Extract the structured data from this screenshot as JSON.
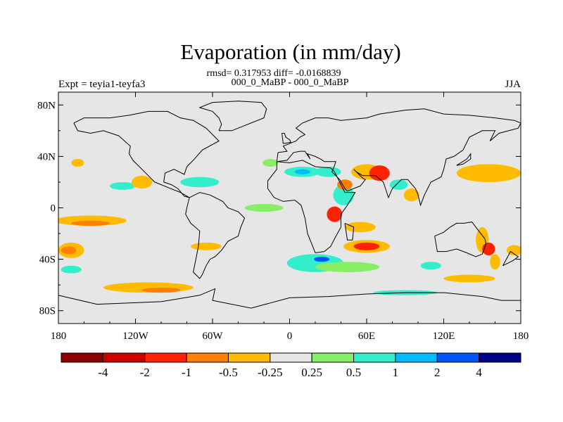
{
  "chart_data": {
    "type": "filled-contour-map",
    "title": "Evaporation (in mm/day)",
    "subtitle_stats": "rmsd= 0.317953 diff= -0.0168839",
    "subtitle_period": "000_0_MaBP - 000_0_MaBP",
    "left_label": "Expt = teyia1-teyfa3",
    "right_label": "JJA",
    "x_ticks": [
      "180",
      "120W",
      "60W",
      "0",
      "60E",
      "120E",
      "180"
    ],
    "x_values": [
      -180,
      -120,
      -60,
      0,
      60,
      120,
      180
    ],
    "y_ticks": [
      "80N",
      "40N",
      "0",
      "40S",
      "80S"
    ],
    "y_values": [
      80,
      40,
      0,
      -40,
      -80
    ],
    "xlim": [
      -180,
      180
    ],
    "ylim": [
      -90,
      90
    ],
    "colorbar_labels": [
      "-4",
      "-2",
      "-1",
      "-0.5",
      "-0.25",
      "0.25",
      "0.5",
      "1",
      "2",
      "4"
    ],
    "colorbar_levels": [
      -4,
      -2,
      -1,
      -0.5,
      -0.25,
      0.25,
      0.5,
      1,
      2,
      4
    ],
    "colorbar_colors": [
      "#8b0000",
      "#cc0000",
      "#ff2200",
      "#ff7f00",
      "#ffbb00",
      "#e6e6e6",
      "#88ee66",
      "#33eecc",
      "#00bbff",
      "#0055ff",
      "#000088"
    ],
    "neutral_color": "#e6e6e6",
    "anomaly_patches": [
      {
        "lon": 20,
        "lat": -43,
        "rlon": 22,
        "rlat": 7,
        "value": 0.6
      },
      {
        "lon": 25,
        "lat": -40,
        "rlon": 6,
        "rlat": 2,
        "value": 2.5
      },
      {
        "lon": 45,
        "lat": -46,
        "rlon": 25,
        "rlat": 4,
        "value": 0.4
      },
      {
        "lon": 110,
        "lat": -45,
        "rlon": 8,
        "rlat": 3,
        "value": 0.6
      },
      {
        "lon": 60,
        "lat": -30,
        "rlon": 18,
        "rlat": 5,
        "value": -0.35
      },
      {
        "lon": 60,
        "lat": -30,
        "rlon": 10,
        "rlat": 3,
        "value": -1.5
      },
      {
        "lon": 55,
        "lat": -15,
        "rlon": 12,
        "rlat": 4,
        "value": -0.4
      },
      {
        "lon": 35,
        "lat": -5,
        "rlon": 6,
        "rlat": 6,
        "value": -1.5
      },
      {
        "lon": 42,
        "lat": 10,
        "rlon": 8,
        "rlat": 8,
        "value": 0.5
      },
      {
        "lon": 60,
        "lat": 28,
        "rlon": 12,
        "rlat": 6,
        "value": -0.35
      },
      {
        "lon": 70,
        "lat": 27,
        "rlon": 8,
        "rlat": 6,
        "value": -1.5
      },
      {
        "lon": 43,
        "lat": 18,
        "rlon": 6,
        "rlat": 4,
        "value": -0.6
      },
      {
        "lon": 85,
        "lat": 18,
        "rlon": 7,
        "rlat": 4,
        "value": 0.6
      },
      {
        "lon": 95,
        "lat": 10,
        "rlon": 6,
        "rlat": 5,
        "value": -0.35
      },
      {
        "lon": 10,
        "lat": 28,
        "rlon": 14,
        "rlat": 4,
        "value": 0.6
      },
      {
        "lon": 10,
        "lat": 28,
        "rlon": 6,
        "rlat": 2,
        "value": 1.5
      },
      {
        "lon": 30,
        "lat": 28,
        "rlon": 10,
        "rlat": 4,
        "value": 0.6
      },
      {
        "lon": 155,
        "lat": 27,
        "rlon": 25,
        "rlat": 7,
        "value": -0.35
      },
      {
        "lon": 150,
        "lat": -25,
        "rlon": 5,
        "rlat": 10,
        "value": -0.35
      },
      {
        "lon": 155,
        "lat": -32,
        "rlon": 5,
        "rlat": 5,
        "value": -1.5
      },
      {
        "lon": 160,
        "lat": -42,
        "rlon": 4,
        "rlat": 6,
        "value": -0.35
      },
      {
        "lon": 175,
        "lat": -33,
        "rlon": 6,
        "rlat": 4,
        "value": -0.35
      },
      {
        "lon": -155,
        "lat": -10,
        "rlon": 28,
        "rlat": 4,
        "value": -0.35
      },
      {
        "lon": -155,
        "lat": -12,
        "rlon": 15,
        "rlat": 2,
        "value": -0.6
      },
      {
        "lon": -170,
        "lat": -33,
        "rlon": 10,
        "rlat": 6,
        "value": -0.35
      },
      {
        "lon": -172,
        "lat": -33,
        "rlon": 6,
        "rlat": 3,
        "value": -0.6
      },
      {
        "lon": -170,
        "lat": -48,
        "rlon": 8,
        "rlat": 3,
        "value": 0.5
      },
      {
        "lon": -110,
        "lat": -62,
        "rlon": 35,
        "rlat": 4,
        "value": -0.35
      },
      {
        "lon": -100,
        "lat": -64,
        "rlon": 15,
        "rlat": 2,
        "value": -0.6
      },
      {
        "lon": -130,
        "lat": 17,
        "rlon": 10,
        "rlat": 3,
        "value": 0.5
      },
      {
        "lon": -115,
        "lat": 20,
        "rlon": 8,
        "rlat": 5,
        "value": -0.35
      },
      {
        "lon": -70,
        "lat": 20,
        "rlon": 15,
        "rlat": 4,
        "value": 0.5
      },
      {
        "lon": -20,
        "lat": 0,
        "rlon": 15,
        "rlat": 3,
        "value": 0.4
      },
      {
        "lon": -65,
        "lat": -30,
        "rlon": 12,
        "rlat": 3,
        "value": -0.35
      },
      {
        "lon": -15,
        "lat": 35,
        "rlon": 6,
        "rlat": 3,
        "value": 0.4
      },
      {
        "lon": 140,
        "lat": -55,
        "rlon": 20,
        "rlat": 3,
        "value": -0.35
      },
      {
        "lon": 90,
        "lat": -66,
        "rlon": 25,
        "rlat": 2,
        "value": 0.5
      },
      {
        "lon": -165,
        "lat": 35,
        "rlon": 5,
        "rlat": 3,
        "value": -0.35
      }
    ],
    "coastline": [
      [
        [
          -168,
          66
        ],
        [
          -160,
          70
        ],
        [
          -140,
          70
        ],
        [
          -125,
          72
        ],
        [
          -110,
          75
        ],
        [
          -95,
          75
        ],
        [
          -85,
          70
        ],
        [
          -75,
          68
        ],
        [
          -65,
          62
        ],
        [
          -55,
          52
        ],
        [
          -68,
          45
        ],
        [
          -75,
          37
        ],
        [
          -80,
          32
        ],
        [
          -82,
          26
        ],
        [
          -90,
          30
        ],
        [
          -97,
          27
        ],
        [
          -98,
          20
        ],
        [
          -92,
          18
        ],
        [
          -87,
          15
        ],
        [
          -82,
          9
        ],
        [
          -78,
          8
        ],
        [
          -85,
          12
        ],
        [
          -95,
          16
        ],
        [
          -105,
          20
        ],
        [
          -110,
          25
        ],
        [
          -117,
          32
        ],
        [
          -122,
          37
        ],
        [
          -125,
          42
        ],
        [
          -124,
          48
        ],
        [
          -133,
          56
        ],
        [
          -145,
          60
        ],
        [
          -155,
          58
        ],
        [
          -165,
          60
        ],
        [
          -168,
          66
        ]
      ],
      [
        [
          -78,
          8
        ],
        [
          -70,
          12
        ],
        [
          -62,
          10
        ],
        [
          -52,
          5
        ],
        [
          -48,
          0
        ],
        [
          -40,
          -3
        ],
        [
          -35,
          -8
        ],
        [
          -38,
          -15
        ],
        [
          -40,
          -22
        ],
        [
          -48,
          -26
        ],
        [
          -53,
          -33
        ],
        [
          -58,
          -38
        ],
        [
          -62,
          -40
        ],
        [
          -65,
          -45
        ],
        [
          -68,
          -52
        ],
        [
          -70,
          -55
        ],
        [
          -75,
          -50
        ],
        [
          -73,
          -40
        ],
        [
          -71,
          -30
        ],
        [
          -70,
          -18
        ],
        [
          -77,
          -12
        ],
        [
          -81,
          -5
        ],
        [
          -80,
          0
        ],
        [
          -78,
          8
        ]
      ],
      [
        [
          -10,
          36
        ],
        [
          0,
          35
        ],
        [
          10,
          37
        ],
        [
          20,
          32
        ],
        [
          32,
          31
        ],
        [
          35,
          28
        ],
        [
          43,
          12
        ],
        [
          51,
          12
        ],
        [
          45,
          2
        ],
        [
          40,
          -5
        ],
        [
          40,
          -15
        ],
        [
          35,
          -24
        ],
        [
          32,
          -30
        ],
        [
          27,
          -34
        ],
        [
          20,
          -35
        ],
        [
          18,
          -30
        ],
        [
          14,
          -20
        ],
        [
          12,
          -8
        ],
        [
          9,
          2
        ],
        [
          4,
          6
        ],
        [
          -5,
          5
        ],
        [
          -12,
          8
        ],
        [
          -17,
          15
        ],
        [
          -17,
          21
        ],
        [
          -10,
          30
        ],
        [
          -10,
          36
        ]
      ],
      [
        [
          -10,
          36
        ],
        [
          -9,
          43
        ],
        [
          -2,
          44
        ],
        [
          -5,
          48
        ],
        [
          5,
          52
        ],
        [
          8,
          55
        ],
        [
          12,
          57
        ],
        [
          5,
          62
        ],
        [
          10,
          66
        ],
        [
          20,
          70
        ],
        [
          30,
          70
        ],
        [
          40,
          68
        ],
        [
          60,
          70
        ],
        [
          70,
          73
        ],
        [
          90,
          76
        ],
        [
          105,
          77
        ],
        [
          120,
          73
        ],
        [
          140,
          72
        ],
        [
          160,
          70
        ],
        [
          175,
          68
        ],
        [
          180,
          66
        ],
        [
          178,
          62
        ],
        [
          163,
          58
        ],
        [
          156,
          52
        ],
        [
          160,
          60
        ],
        [
          150,
          60
        ],
        [
          140,
          55
        ],
        [
          135,
          45
        ],
        [
          128,
          40
        ],
        [
          122,
          38
        ],
        [
          120,
          30
        ],
        [
          118,
          24
        ],
        [
          110,
          20
        ],
        [
          105,
          10
        ],
        [
          102,
          2
        ],
        [
          100,
          10
        ],
        [
          98,
          15
        ],
        [
          92,
          22
        ],
        [
          87,
          22
        ],
        [
          80,
          15
        ],
        [
          77,
          8
        ],
        [
          73,
          20
        ],
        [
          67,
          25
        ],
        [
          57,
          25
        ],
        [
          52,
          28
        ],
        [
          50,
          30
        ],
        [
          57,
          23
        ],
        [
          59,
          22
        ],
        [
          55,
          17
        ],
        [
          45,
          13
        ],
        [
          43,
          15
        ],
        [
          39,
          22
        ],
        [
          33,
          28
        ],
        [
          35,
          33
        ],
        [
          36,
          36
        ],
        [
          27,
          36
        ],
        [
          24,
          38
        ],
        [
          20,
          40
        ],
        [
          14,
          42
        ],
        [
          16,
          38
        ],
        [
          12,
          44
        ],
        [
          8,
          44
        ],
        [
          3,
          43
        ],
        [
          -2,
          37
        ],
        [
          -10,
          36
        ]
      ],
      [
        [
          113,
          -22
        ],
        [
          115,
          -34
        ],
        [
          122,
          -34
        ],
        [
          130,
          -32
        ],
        [
          138,
          -35
        ],
        [
          145,
          -38
        ],
        [
          150,
          -36
        ],
        [
          153,
          -28
        ],
        [
          152,
          -24
        ],
        [
          145,
          -15
        ],
        [
          142,
          -11
        ],
        [
          136,
          -12
        ],
        [
          130,
          -12
        ],
        [
          125,
          -15
        ],
        [
          120,
          -19
        ],
        [
          113,
          -22
        ]
      ],
      [
        [
          -55,
          60
        ],
        [
          -45,
          60
        ],
        [
          -20,
          70
        ],
        [
          -18,
          77
        ],
        [
          -22,
          82
        ],
        [
          -40,
          83
        ],
        [
          -60,
          82
        ],
        [
          -70,
          78
        ],
        [
          -60,
          75
        ],
        [
          -55,
          70
        ],
        [
          -53,
          65
        ],
        [
          -55,
          60
        ]
      ],
      [
        [
          -180,
          -68
        ],
        [
          -150,
          -75
        ],
        [
          -100,
          -73
        ],
        [
          -70,
          -68
        ],
        [
          -58,
          -63
        ],
        [
          -60,
          -72
        ],
        [
          -30,
          -78
        ],
        [
          0,
          -70
        ],
        [
          30,
          -69
        ],
        [
          60,
          -67
        ],
        [
          90,
          -66
        ],
        [
          120,
          -66
        ],
        [
          150,
          -69
        ],
        [
          165,
          -72
        ],
        [
          180,
          -72
        ],
        [
          180,
          -90
        ],
        [
          -180,
          -90
        ],
        [
          -180,
          -68
        ]
      ],
      [
        [
          -5,
          50
        ],
        [
          1,
          51
        ],
        [
          0,
          53
        ],
        [
          -3,
          55
        ],
        [
          -4,
          58
        ],
        [
          -6,
          58
        ],
        [
          -5,
          50
        ]
      ],
      [
        [
          43,
          -12
        ],
        [
          50,
          -15
        ],
        [
          49,
          -25
        ],
        [
          45,
          -25
        ],
        [
          43,
          -12
        ]
      ],
      [
        [
          130,
          33
        ],
        [
          135,
          34
        ],
        [
          141,
          38
        ],
        [
          141,
          42
        ],
        [
          138,
          38
        ],
        [
          130,
          33
        ]
      ],
      [
        [
          166,
          -45
        ],
        [
          174,
          -41
        ],
        [
          178,
          -38
        ],
        [
          172,
          -34
        ],
        [
          166,
          -45
        ]
      ]
    ]
  }
}
